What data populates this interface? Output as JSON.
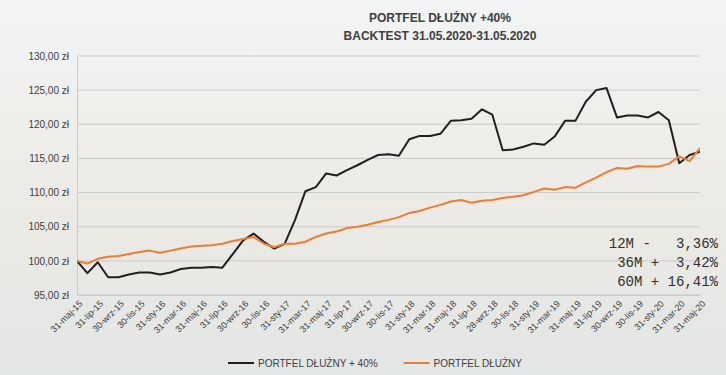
{
  "chart_data": {
    "type": "line",
    "title": "PORTFEL DŁUŻNY +40%",
    "subtitle": "BACKTEST 31.05.2020-31.05.2020",
    "categories": [
      "31-maj-15",
      null,
      "31-lip-15",
      null,
      "30-wrz-15",
      null,
      "30-lis-15",
      null,
      "31-sty-16",
      null,
      "31-mar-16",
      null,
      "31-maj-16",
      null,
      "31-lip-16",
      null,
      "30-wrz-16",
      null,
      "30-lis-16",
      null,
      "31-sty-17",
      null,
      "31-mar-17",
      null,
      "31-maj-17",
      null,
      "31-lip-17",
      null,
      "30-wrz-17",
      null,
      "30-lis-17",
      null,
      "31-sty-18",
      null,
      "31-mar-18",
      null,
      "31-maj-18",
      null,
      "31-lip-18",
      null,
      "28-wrz-18",
      null,
      "30-lis-18",
      null,
      "31-sty-19",
      null,
      "31-mar-19",
      null,
      "31-maj-19",
      null,
      "31-lip-19",
      null,
      "30-wrz-19",
      null,
      "30-lis-19",
      null,
      "31-sty-20",
      null,
      "31-mar-20",
      null,
      "31-maj-20"
    ],
    "series": [
      {
        "name": "PORTFEL DŁUŻNY + 40%",
        "color": "#231f20",
        "values": [
          100,
          98.2,
          99.8,
          97.6,
          97.6,
          98.0,
          98.3,
          98.3,
          98.0,
          98.3,
          98.8,
          99.0,
          99.0,
          99.1,
          99.0,
          101.0,
          103.0,
          104.0,
          102.8,
          101.8,
          102.5,
          106.0,
          110.2,
          110.8,
          112.8,
          112.5,
          113.3,
          114.0,
          114.8,
          115.5,
          115.6,
          115.4,
          117.8,
          118.3,
          118.3,
          118.6,
          120.5,
          120.6,
          120.8,
          122.2,
          121.4,
          116.2,
          116.3,
          116.7,
          117.2,
          117.0,
          118.2,
          120.5,
          120.5,
          123.3,
          125.0,
          125.3,
          121.0,
          121.3,
          121.3,
          121.0,
          121.8,
          120.6,
          114.3,
          115.5,
          116.0
        ]
      },
      {
        "name": "PORTFEL DŁUŻNY",
        "color": "#ed7d31",
        "values": [
          100,
          99.6,
          100.3,
          100.6,
          100.7,
          101.0,
          101.3,
          101.5,
          101.2,
          101.5,
          101.8,
          102.1,
          102.2,
          102.3,
          102.5,
          102.9,
          103.2,
          103.5,
          102.5,
          102.0,
          102.5,
          102.5,
          102.8,
          103.5,
          104.0,
          104.3,
          104.8,
          105.0,
          105.3,
          105.7,
          106.0,
          106.4,
          107.0,
          107.3,
          107.8,
          108.2,
          108.7,
          108.9,
          108.5,
          108.8,
          108.9,
          109.2,
          109.4,
          109.6,
          110.1,
          110.6,
          110.4,
          110.8,
          110.7,
          111.5,
          112.2,
          113.0,
          113.6,
          113.5,
          113.9,
          113.8,
          113.8,
          114.2,
          115.3,
          114.6,
          116.5
        ]
      }
    ],
    "ylim": [
      95,
      130
    ],
    "yticks": [
      {
        "value": 95,
        "label": "95,00 zł"
      },
      {
        "value": 100,
        "label": "100,00 zł"
      },
      {
        "value": 105,
        "label": "105,00 zł"
      },
      {
        "value": 110,
        "label": "110,00 zł"
      },
      {
        "value": 115,
        "label": "115,00 zł"
      },
      {
        "value": 120,
        "label": "120,00 zł"
      },
      {
        "value": 125,
        "label": "125,00 zł"
      },
      {
        "value": 130,
        "label": "130,00 zł"
      }
    ],
    "grid": true,
    "legend": "bottom",
    "annotations": [
      "12M -   3,36%",
      "36M +  3,42%",
      "60M + 16,41%"
    ]
  }
}
